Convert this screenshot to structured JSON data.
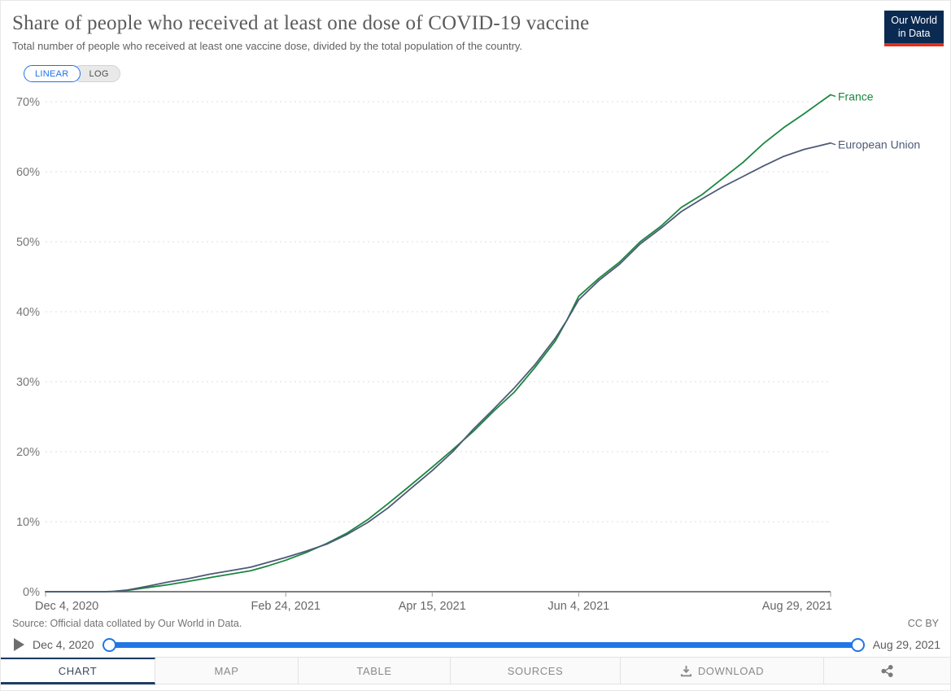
{
  "header": {
    "title": "Share of people who received at least one dose of COVID-19 vaccine",
    "subtitle": "Total number of people who received at least one vaccine dose, divided by the total population of the country.",
    "logo": {
      "line1": "Our World",
      "line2": "in Data"
    }
  },
  "controls": {
    "scale_buttons": [
      {
        "label": "LINEAR",
        "active": true
      },
      {
        "label": "LOG",
        "active": false
      }
    ]
  },
  "chart_data": {
    "type": "line",
    "title": "Share of people who received at least one dose of COVID-19 vaccine",
    "grid": "horizontal-dashed",
    "legend_position": "end-of-line-labels",
    "ylim": [
      0,
      71.5
    ],
    "yticks": [
      0,
      10,
      20,
      30,
      40,
      50,
      60,
      70
    ],
    "ytick_labels": [
      "0%",
      "10%",
      "20%",
      "30%",
      "40%",
      "50%",
      "60%",
      "70%"
    ],
    "x_range_days": [
      0,
      268
    ],
    "x_tick_days": [
      0,
      82,
      132,
      182,
      268
    ],
    "x_tick_labels": [
      "Dec 4, 2020",
      "Feb 24, 2021",
      "Apr 15, 2021",
      "Jun 4, 2021",
      "Aug 29, 2021"
    ],
    "x_unit": "days since Dec 4, 2020",
    "series": [
      {
        "name": "France",
        "color": "#1a863f",
        "points": [
          [
            0,
            0
          ],
          [
            10,
            0
          ],
          [
            20,
            0
          ],
          [
            23,
            0.05
          ],
          [
            28,
            0.2
          ],
          [
            35,
            0.6
          ],
          [
            42,
            1.0
          ],
          [
            49,
            1.5
          ],
          [
            56,
            2.0
          ],
          [
            63,
            2.5
          ],
          [
            70,
            3.0
          ],
          [
            76,
            3.7
          ],
          [
            82,
            4.5
          ],
          [
            89,
            5.6
          ],
          [
            96,
            6.9
          ],
          [
            103,
            8.4
          ],
          [
            110,
            10.3
          ],
          [
            117,
            12.6
          ],
          [
            124,
            15.0
          ],
          [
            132,
            17.8
          ],
          [
            139,
            20.3
          ],
          [
            146,
            22.9
          ],
          [
            153,
            25.8
          ],
          [
            160,
            28.5
          ],
          [
            167,
            32.0
          ],
          [
            174,
            35.8
          ],
          [
            178,
            38.8
          ],
          [
            182,
            42.2
          ],
          [
            189,
            44.8
          ],
          [
            196,
            47.1
          ],
          [
            203,
            50.0
          ],
          [
            210,
            52.2
          ],
          [
            217,
            54.9
          ],
          [
            224,
            56.7
          ],
          [
            231,
            59.0
          ],
          [
            238,
            61.3
          ],
          [
            245,
            64.0
          ],
          [
            252,
            66.3
          ],
          [
            259,
            68.3
          ],
          [
            264,
            69.8
          ],
          [
            268,
            71.0
          ]
        ]
      },
      {
        "name": "European Union",
        "color": "#4d5a77",
        "points": [
          [
            0,
            0
          ],
          [
            10,
            0
          ],
          [
            20,
            0
          ],
          [
            23,
            0.05
          ],
          [
            28,
            0.25
          ],
          [
            35,
            0.8
          ],
          [
            42,
            1.4
          ],
          [
            49,
            1.9
          ],
          [
            56,
            2.5
          ],
          [
            63,
            3.0
          ],
          [
            70,
            3.5
          ],
          [
            76,
            4.2
          ],
          [
            82,
            4.9
          ],
          [
            89,
            5.8
          ],
          [
            96,
            6.8
          ],
          [
            103,
            8.2
          ],
          [
            110,
            9.9
          ],
          [
            117,
            12.0
          ],
          [
            124,
            14.5
          ],
          [
            132,
            17.3
          ],
          [
            139,
            20.0
          ],
          [
            146,
            23.2
          ],
          [
            153,
            26.1
          ],
          [
            160,
            29.1
          ],
          [
            167,
            32.4
          ],
          [
            174,
            36.2
          ],
          [
            178,
            38.8
          ],
          [
            182,
            41.7
          ],
          [
            189,
            44.5
          ],
          [
            196,
            46.8
          ],
          [
            203,
            49.7
          ],
          [
            210,
            51.9
          ],
          [
            217,
            54.3
          ],
          [
            224,
            56.1
          ],
          [
            231,
            57.8
          ],
          [
            238,
            59.3
          ],
          [
            245,
            60.8
          ],
          [
            252,
            62.2
          ],
          [
            259,
            63.2
          ],
          [
            264,
            63.7
          ],
          [
            268,
            64.1
          ]
        ]
      }
    ]
  },
  "footer": {
    "source_text": "Source: Official data collated by Our World in Data.",
    "license": "CC BY"
  },
  "timeline": {
    "start_label": "Dec 4, 2020",
    "end_label": "Aug 29, 2021"
  },
  "tabs": [
    {
      "label": "CHART",
      "active": true
    },
    {
      "label": "MAP",
      "active": false
    },
    {
      "label": "TABLE",
      "active": false
    },
    {
      "label": "SOURCES",
      "active": false
    },
    {
      "label": "DOWNLOAD",
      "active": false,
      "icon": "download-icon"
    },
    {
      "label": "",
      "active": false,
      "icon": "share-icon"
    }
  ],
  "colors": {
    "accent_blue": "#2176e6",
    "tab_active_navy": "#1d3d63",
    "logo_navy": "#0b2a52",
    "logo_red": "#e0301e",
    "grid_gray": "#dedede",
    "axis_gray": "#555555"
  }
}
